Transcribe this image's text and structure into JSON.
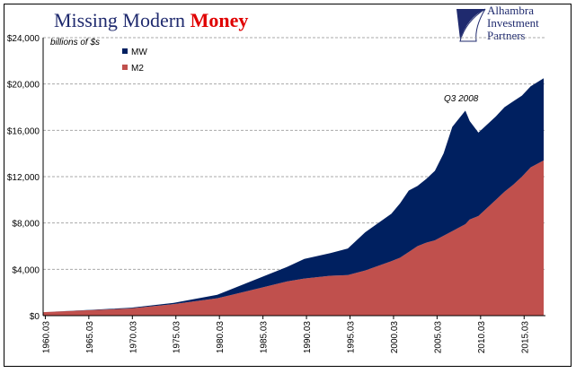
{
  "logo": [
    "Alhambra",
    "Investment",
    "Partners"
  ],
  "chart_data": {
    "type": "stacked-area",
    "title": "Missing Modern",
    "title_emphasis": "Money",
    "subtitle": "billions of $s",
    "annotation": "Q3 2008",
    "x": [
      1960,
      1965,
      1970,
      1975,
      1980,
      1985,
      1988,
      1990,
      1993,
      1995,
      1997,
      2000,
      2001,
      2002,
      2003,
      2004,
      2005,
      2006,
      2007,
      2008.5,
      2009,
      2010,
      2011,
      2012,
      2013,
      2014,
      2015,
      2016,
      2017.5
    ],
    "series": [
      {
        "name": "MW",
        "color": "#002060",
        "values": [
          0,
          20,
          60,
          100,
          300,
          900,
          1250,
          1700,
          1950,
          2300,
          3300,
          4100,
          4700,
          5300,
          5200,
          5500,
          6000,
          7100,
          9000,
          9800,
          8500,
          7200,
          7200,
          7200,
          7300,
          7200,
          7000,
          7000,
          7100
        ]
      },
      {
        "name": "M2",
        "color": "#c0504d",
        "values": [
          300,
          460,
          620,
          1000,
          1500,
          2400,
          2950,
          3200,
          3450,
          3500,
          3900,
          4700,
          5000,
          5500,
          6000,
          6300,
          6500,
          6900,
          7300,
          7900,
          8300,
          8600,
          9300,
          10000,
          10700,
          11300,
          12000,
          12800,
          13400
        ]
      }
    ],
    "xlim": [
      1960,
      2017.7
    ],
    "xticks": [
      {
        "value": 1960.25,
        "label": "1960.03"
      },
      {
        "value": 1965.25,
        "label": "1965.03"
      },
      {
        "value": 1970.25,
        "label": "1970.03"
      },
      {
        "value": 1975.25,
        "label": "1975.03"
      },
      {
        "value": 1980.25,
        "label": "1980.03"
      },
      {
        "value": 1985.25,
        "label": "1985.03"
      },
      {
        "value": 1990.25,
        "label": "1990.03"
      },
      {
        "value": 1995.25,
        "label": "1995.03"
      },
      {
        "value": 2000.25,
        "label": "2000.03"
      },
      {
        "value": 2005.25,
        "label": "2005.03"
      },
      {
        "value": 2010.25,
        "label": "2010.03"
      },
      {
        "value": 2015.25,
        "label": "2015.03"
      }
    ],
    "ylim": [
      0,
      24000
    ],
    "yticks": [
      {
        "value": 0,
        "label": "$0"
      },
      {
        "value": 4000,
        "label": "$4,000"
      },
      {
        "value": 8000,
        "label": "$8,000"
      },
      {
        "value": 12000,
        "label": "$12,000"
      },
      {
        "value": 16000,
        "label": "$16,000"
      },
      {
        "value": 20000,
        "label": "$20,000"
      },
      {
        "value": 24000,
        "label": "$24,000"
      }
    ],
    "grid": true
  }
}
